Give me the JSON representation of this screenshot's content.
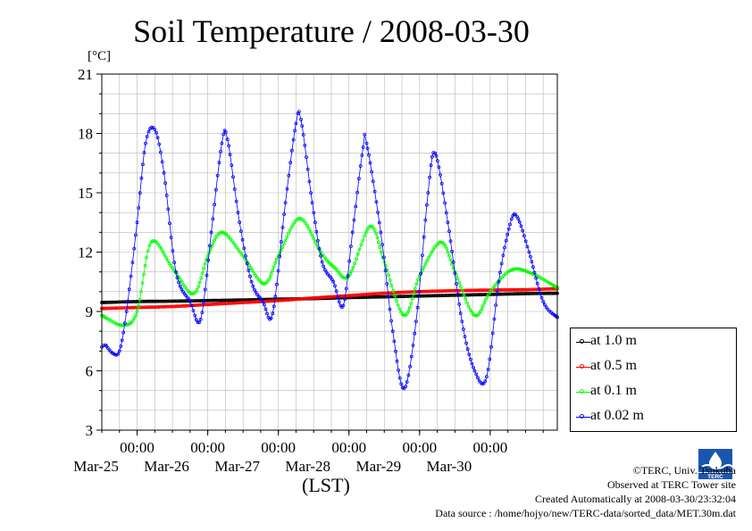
{
  "chart_data": {
    "type": "line",
    "title": "Soil Temperature / 2008-03-30",
    "yunit": "[°C]",
    "xlabel": "(LST)",
    "ylim": [
      3,
      21
    ],
    "yticks": [
      3,
      6,
      9,
      12,
      15,
      18,
      21
    ],
    "xlim_days": [
      24.5,
      30.95
    ],
    "xticks": [
      {
        "day": 25,
        "time": "00:00",
        "date": "Mar-25"
      },
      {
        "day": 26,
        "time": "00:00",
        "date": "Mar-26"
      },
      {
        "day": 27,
        "time": "00:00",
        "date": "Mar-27"
      },
      {
        "day": 28,
        "time": "00:00",
        "date": "Mar-28"
      },
      {
        "day": 29,
        "time": "00:00",
        "date": "Mar-29"
      },
      {
        "day": 30,
        "time": "00:00",
        "date": "Mar-30"
      }
    ],
    "grid": true,
    "legend_position": "right",
    "series": [
      {
        "name": "at 1.0 m",
        "color": "#000000",
        "x": [
          24.5,
          25.0,
          25.5,
          26.0,
          26.5,
          27.0,
          27.5,
          28.0,
          28.5,
          29.0,
          29.5,
          30.0,
          30.5,
          30.95
        ],
        "y": [
          9.45,
          9.5,
          9.52,
          9.55,
          9.58,
          9.62,
          9.65,
          9.7,
          9.74,
          9.78,
          9.82,
          9.86,
          9.9,
          9.92
        ]
      },
      {
        "name": "at 0.5 m",
        "color": "#ff0000",
        "x": [
          24.5,
          25.0,
          25.5,
          26.0,
          26.5,
          27.0,
          27.5,
          28.0,
          28.5,
          29.0,
          29.5,
          30.0,
          30.5,
          30.95
        ],
        "y": [
          9.15,
          9.2,
          9.25,
          9.35,
          9.45,
          9.55,
          9.68,
          9.8,
          9.92,
          10.0,
          10.05,
          10.08,
          10.1,
          10.15
        ]
      },
      {
        "name": "at 0.1 m",
        "color": "#00ff00",
        "x": [
          24.5,
          24.8,
          25.0,
          25.2,
          25.5,
          25.8,
          26.0,
          26.2,
          26.5,
          26.8,
          27.0,
          27.3,
          27.6,
          27.8,
          28.0,
          28.3,
          28.5,
          28.78,
          29.0,
          29.3,
          29.5,
          29.78,
          30.0,
          30.3,
          30.6,
          30.95
        ],
        "y": [
          8.8,
          8.3,
          9.0,
          12.5,
          11.2,
          9.9,
          11.8,
          13.0,
          11.8,
          10.4,
          11.8,
          13.7,
          12.0,
          11.2,
          10.8,
          13.3,
          11.5,
          8.8,
          10.8,
          12.5,
          11.0,
          8.8,
          10.0,
          11.1,
          10.9,
          10.2
        ]
      },
      {
        "name": "at 0.02 m",
        "color": "#0000ff",
        "x": [
          24.5,
          24.55,
          24.65,
          24.75,
          24.85,
          25.0,
          25.12,
          25.25,
          25.38,
          25.55,
          25.75,
          25.9,
          26.05,
          26.2,
          26.28,
          26.45,
          26.62,
          26.78,
          26.92,
          27.1,
          27.25,
          27.32,
          27.48,
          27.62,
          27.78,
          27.92,
          28.05,
          28.2,
          28.25,
          28.45,
          28.62,
          28.78,
          28.95,
          29.12,
          29.22,
          29.4,
          29.6,
          29.78,
          29.95,
          30.12,
          30.28,
          30.38,
          30.55,
          30.75,
          30.95
        ],
        "y": [
          7.2,
          7.3,
          6.9,
          7.0,
          9.0,
          13.5,
          17.5,
          18.2,
          16.0,
          11.0,
          9.5,
          8.6,
          13.0,
          17.5,
          17.7,
          13.5,
          10.5,
          9.5,
          8.9,
          14.5,
          18.5,
          18.7,
          14.5,
          11.5,
          10.5,
          9.3,
          13.0,
          17.3,
          17.5,
          13.0,
          8.0,
          5.1,
          8.5,
          15.0,
          17.0,
          13.5,
          8.5,
          6.0,
          5.7,
          10.5,
          13.4,
          13.8,
          12.0,
          9.5,
          8.7
        ]
      }
    ]
  },
  "legend": [
    "at 1.0 m",
    "at 0.5 m",
    "at 0.1 m",
    "at 0.02 m"
  ],
  "credits": {
    "copyright": "©TERC, Univ. Tsukuba",
    "observed": "Observed at TERC Tower site",
    "created": "Created Automatically at 2008-03-30/23:32:04",
    "source": "Data source : /home/hojyo/new/TERC-data/sorted_data/MET.30m.dat"
  },
  "logo_icon": "terc-logo-icon"
}
